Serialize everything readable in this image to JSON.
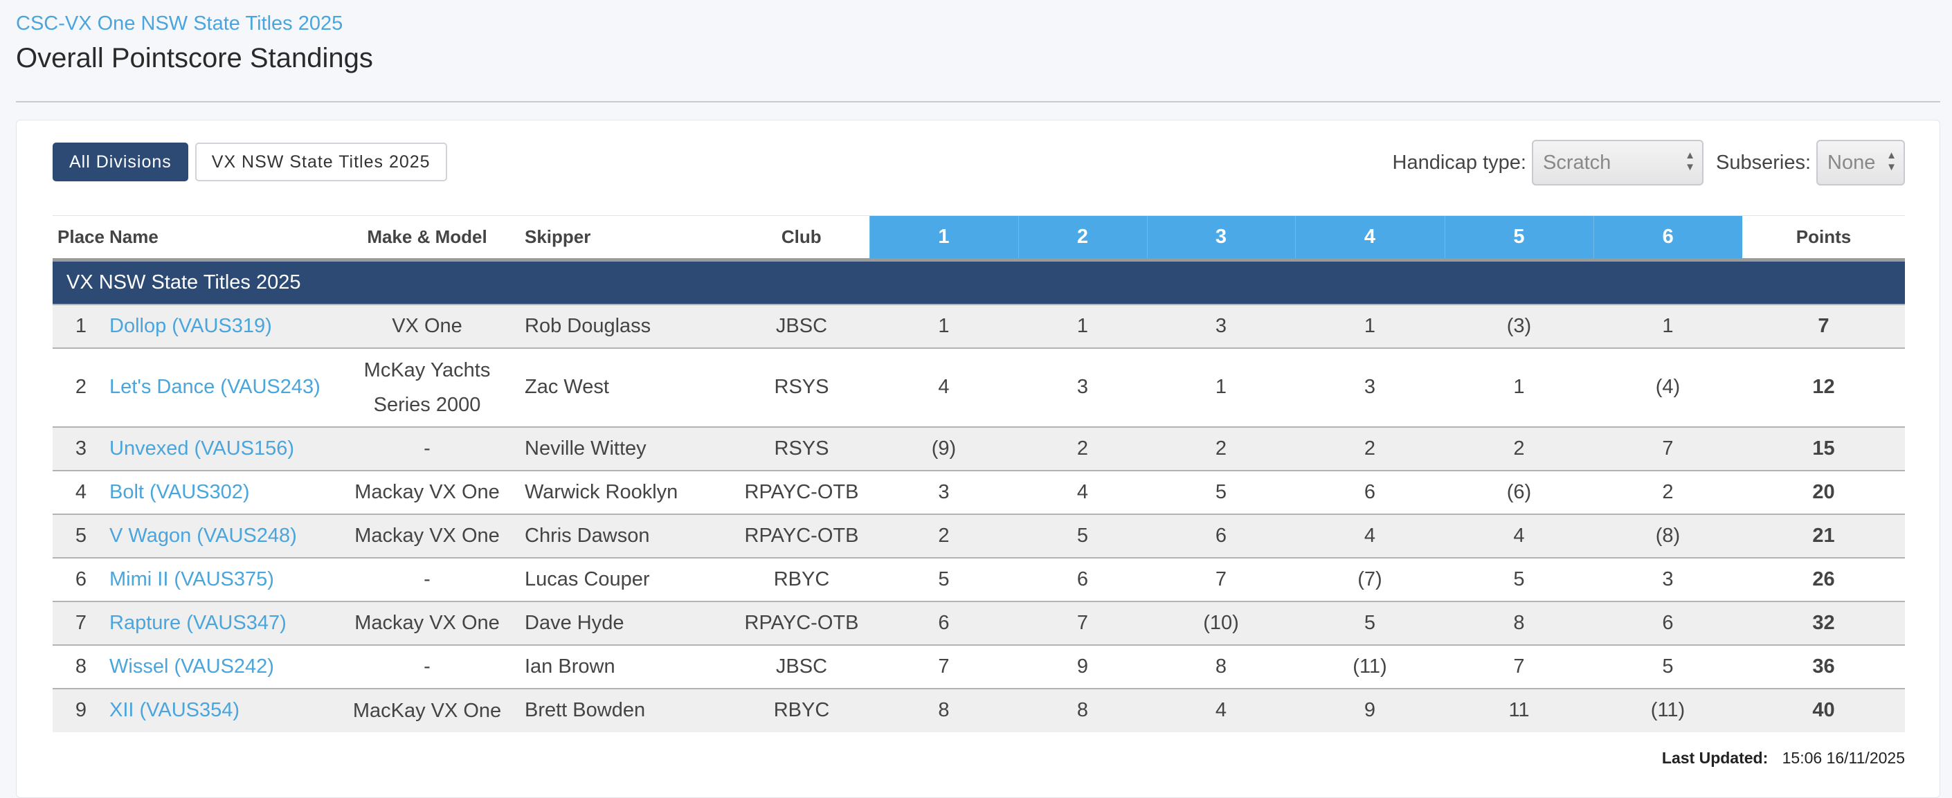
{
  "header": {
    "series_link": "CSC-VX One NSW State Titles 2025",
    "title": "Overall Pointscore Standings"
  },
  "divisions": [
    "All Divisions",
    "VX NSW State Titles 2025"
  ],
  "controls": {
    "handicap_label": "Handicap type:",
    "handicap_value": "Scratch",
    "subseries_label": "Subseries:",
    "subseries_value": "None"
  },
  "table": {
    "headers": {
      "place": "Place",
      "name": "Name",
      "make": "Make & Model",
      "skipper": "Skipper",
      "club": "Club",
      "races": [
        "1",
        "2",
        "3",
        "4",
        "5",
        "6"
      ],
      "points": "Points"
    },
    "group": "VX NSW State Titles 2025",
    "rows": [
      {
        "place": "1",
        "name": "Dollop (VAUS319)",
        "make": "VX One",
        "skipper": "Rob Douglass",
        "club": "JBSC",
        "races": [
          "1",
          "1",
          "3",
          "1",
          "(3)",
          "1"
        ],
        "points": "7"
      },
      {
        "place": "2",
        "name": "Let's Dance (VAUS243)",
        "make": "McKay Yachts Series 2000",
        "skipper": "Zac West",
        "club": "RSYS",
        "races": [
          "4",
          "3",
          "1",
          "3",
          "1",
          "(4)"
        ],
        "points": "12"
      },
      {
        "place": "3",
        "name": "Unvexed (VAUS156)",
        "make": "-",
        "skipper": "Neville Wittey",
        "club": "RSYS",
        "races": [
          "(9)",
          "2",
          "2",
          "2",
          "2",
          "7"
        ],
        "points": "15"
      },
      {
        "place": "4",
        "name": "Bolt (VAUS302)",
        "make": "Mackay VX One",
        "skipper": "Warwick Rooklyn",
        "club": "RPAYC-OTB",
        "races": [
          "3",
          "4",
          "5",
          "6",
          "(6)",
          "2"
        ],
        "points": "20"
      },
      {
        "place": "5",
        "name": "V Wagon (VAUS248)",
        "make": "Mackay VX One",
        "skipper": "Chris Dawson",
        "club": "RPAYC-OTB",
        "races": [
          "2",
          "5",
          "6",
          "4",
          "4",
          "(8)"
        ],
        "points": "21"
      },
      {
        "place": "6",
        "name": "Mimi II (VAUS375)",
        "make": "-",
        "skipper": "Lucas Couper",
        "club": "RBYC",
        "races": [
          "5",
          "6",
          "7",
          "(7)",
          "5",
          "3"
        ],
        "points": "26"
      },
      {
        "place": "7",
        "name": "Rapture (VAUS347)",
        "make": "Mackay VX One",
        "skipper": "Dave Hyde",
        "club": "RPAYC-OTB",
        "races": [
          "6",
          "7",
          "(10)",
          "5",
          "8",
          "6"
        ],
        "points": "32"
      },
      {
        "place": "8",
        "name": "Wissel (VAUS242)",
        "make": "-",
        "skipper": "Ian Brown",
        "club": "JBSC",
        "races": [
          "7",
          "9",
          "8",
          "(11)",
          "7",
          "5"
        ],
        "points": "36"
      },
      {
        "place": "9",
        "name": "XII (VAUS354)",
        "make": "MacKay VX One",
        "skipper": "Brett Bowden",
        "club": "RBYC",
        "races": [
          "8",
          "8",
          "4",
          "9",
          "11",
          "(11)"
        ],
        "points": "40"
      }
    ]
  },
  "footer": {
    "last_updated_label": "Last Updated:",
    "last_updated_value": "15:06 16/11/2025"
  }
}
